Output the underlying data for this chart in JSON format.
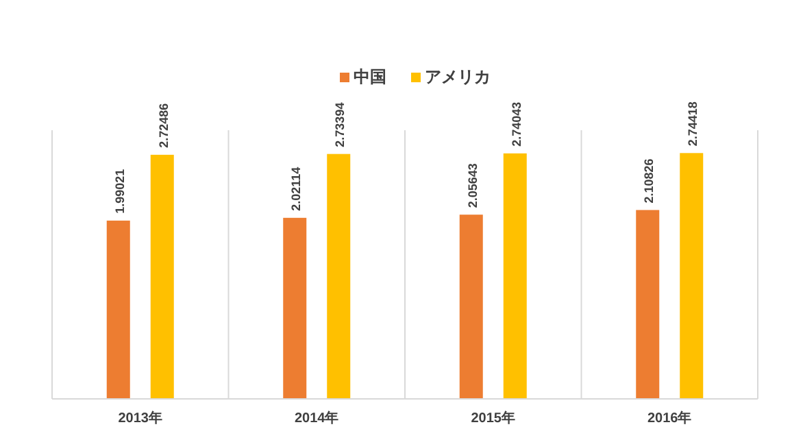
{
  "chart_data": {
    "type": "bar",
    "categories": [
      "2013年",
      "2014年",
      "2015年",
      "2016年"
    ],
    "series": [
      {
        "name": "中国",
        "color": "#ed7d31",
        "values": [
          1.99021,
          2.02114,
          2.05643,
          2.10826
        ]
      },
      {
        "name": "アメリカ",
        "color": "#ffc000",
        "values": [
          2.72486,
          2.73394,
          2.74043,
          2.74418
        ]
      }
    ],
    "data_labels": true,
    "legend": "top",
    "grid": "x"
  }
}
